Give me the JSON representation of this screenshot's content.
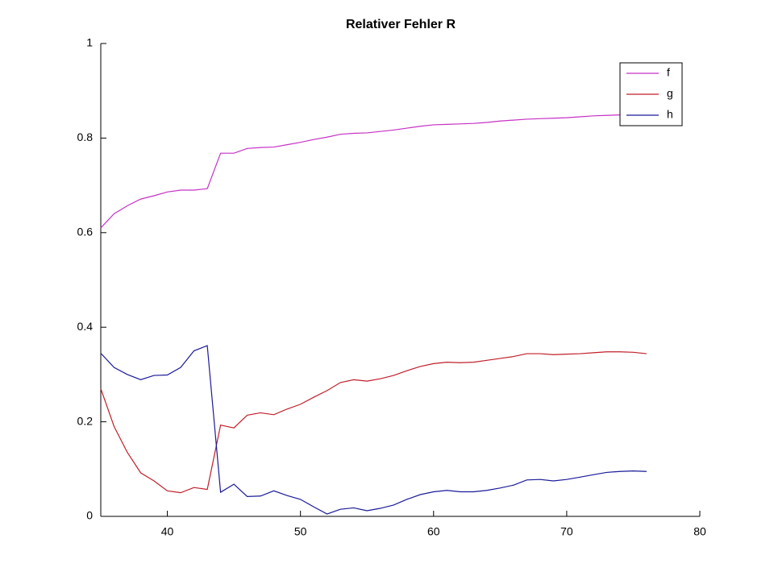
{
  "chart_data": {
    "type": "line",
    "title": "Relativer Fehler R",
    "x": [
      35,
      36,
      37,
      38,
      39,
      40,
      41,
      42,
      43,
      44,
      45,
      46,
      47,
      48,
      49,
      50,
      51,
      52,
      53,
      54,
      55,
      56,
      57,
      58,
      59,
      60,
      61,
      62,
      63,
      64,
      65,
      66,
      67,
      68,
      69,
      70,
      71,
      72,
      73,
      74,
      75,
      76
    ],
    "series": [
      {
        "name": "f",
        "color": "#c631c6",
        "values": [
          0.61,
          0.64,
          0.657,
          0.671,
          0.678,
          0.686,
          0.69,
          0.69,
          0.693,
          0.768,
          0.768,
          0.778,
          0.78,
          0.781,
          0.786,
          0.791,
          0.797,
          0.802,
          0.808,
          0.81,
          0.811,
          0.814,
          0.817,
          0.821,
          0.825,
          0.828,
          0.829,
          0.83,
          0.831,
          0.833,
          0.836,
          0.838,
          0.84,
          0.841,
          0.842,
          0.843,
          0.845,
          0.847,
          0.848,
          0.849,
          0.85,
          0.851
        ]
      },
      {
        "name": "g",
        "color": "#c01f2a",
        "values": [
          0.27,
          0.19,
          0.135,
          0.092,
          0.075,
          0.054,
          0.05,
          0.061,
          0.057,
          0.193,
          0.187,
          0.214,
          0.219,
          0.215,
          0.227,
          0.237,
          0.252,
          0.266,
          0.283,
          0.289,
          0.286,
          0.291,
          0.298,
          0.308,
          0.317,
          0.323,
          0.326,
          0.325,
          0.326,
          0.33,
          0.334,
          0.338,
          0.344,
          0.344,
          0.342,
          0.343,
          0.344,
          0.346,
          0.348,
          0.348,
          0.347,
          0.344
        ]
      },
      {
        "name": "h",
        "color": "#1a1a9a",
        "values": [
          0.345,
          0.315,
          0.3,
          0.289,
          0.298,
          0.299,
          0.315,
          0.35,
          0.361,
          0.051,
          0.068,
          0.042,
          0.043,
          0.054,
          0.044,
          0.036,
          0.02,
          0.005,
          0.015,
          0.018,
          0.012,
          0.017,
          0.024,
          0.036,
          0.046,
          0.052,
          0.055,
          0.052,
          0.052,
          0.055,
          0.06,
          0.066,
          0.077,
          0.078,
          0.075,
          0.078,
          0.083,
          0.088,
          0.093,
          0.095,
          0.096,
          0.095
        ]
      }
    ],
    "xlim": [
      35,
      80
    ],
    "xticks": [
      40,
      50,
      60,
      70,
      80
    ],
    "ylim": [
      0,
      1
    ],
    "yticks": [
      0,
      0.2,
      0.4,
      0.6,
      0.8,
      1
    ],
    "legend": "upper-right"
  }
}
